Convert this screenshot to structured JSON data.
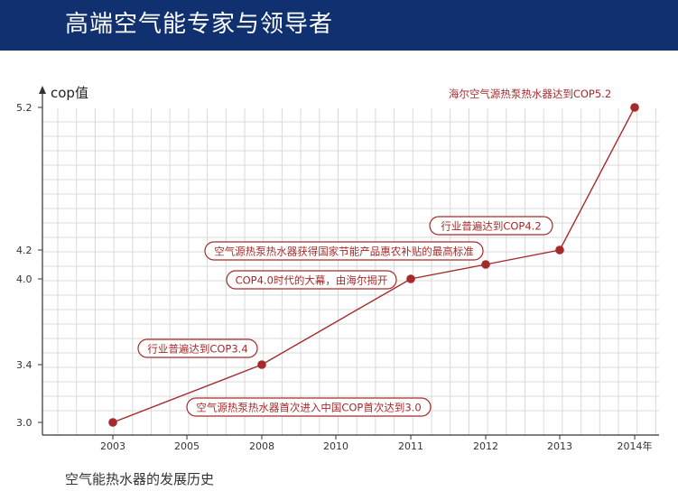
{
  "header": {
    "title": "高端空气能专家与领导者"
  },
  "caption": "空气能热水器的发展历史",
  "colors": {
    "header_bg": "#11306f",
    "accent": "#a52a2a",
    "grid": "#d9d9d9",
    "axis": "#333333"
  },
  "chart_data": {
    "type": "line",
    "ylabel": "cop值",
    "xlabel": "",
    "x": [
      2003,
      2008,
      2011,
      2012,
      2013,
      2014
    ],
    "x_ticks": [
      "2003",
      "2005",
      "2008",
      "2010",
      "2011",
      "2012",
      "2013",
      "2014年"
    ],
    "y_ticks": [
      "3.0",
      "3.4",
      "4.0",
      "4.2",
      "5.2"
    ],
    "y_tick_values": [
      3.0,
      3.4,
      4.0,
      4.2,
      5.2
    ],
    "series": [
      {
        "values": [
          3.0,
          3.4,
          4.0,
          4.1,
          4.2,
          5.2
        ]
      }
    ],
    "annotations": [
      "空气源热泵热水器首次进入中国COP首次达到3.0",
      "行业普遍达到COP3.4",
      "COP4.0时代的大幕，由海尔揭开",
      "空气源热泵热水器获得国家节能产品惠农补贴的最高标准",
      "行业普遍达到COP4.2",
      "海尔空气源热泵热水器达到COP5.2"
    ],
    "grid": true
  }
}
